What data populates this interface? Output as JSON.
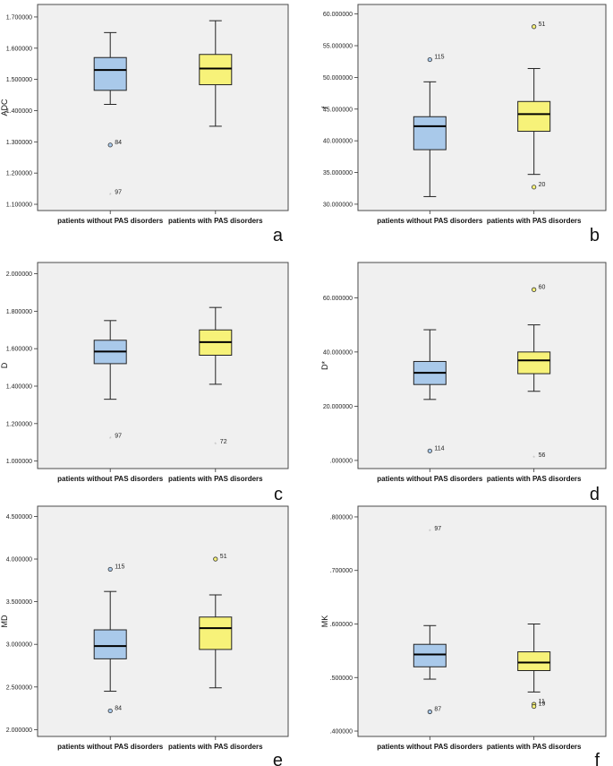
{
  "chart_data": [
    {
      "id": "a",
      "type": "boxplot",
      "letter": "a",
      "ylabel": "ADC",
      "ticks": [
        "1.100000",
        "1.200000",
        "1.300000",
        "1.400000",
        "1.500000",
        "1.600000",
        "1.700000"
      ],
      "tick_values": [
        1.1,
        1.2,
        1.3,
        1.4,
        1.5,
        1.6,
        1.7
      ],
      "ylim": [
        1.08,
        1.74
      ],
      "categories": [
        "patients without PAS disorders",
        "patients with PAS disorders"
      ],
      "boxes": [
        {
          "min": 1.42,
          "q1": 1.465,
          "median": 1.53,
          "q3": 1.57,
          "max": 1.65,
          "color": "#a9c9ea",
          "outliers": [
            {
              "value": 1.29,
              "label": "84",
              "kind": "circle"
            },
            {
              "value": 1.13,
              "label": "97",
              "kind": "star"
            }
          ]
        },
        {
          "min": 1.35,
          "q1": 1.483,
          "median": 1.535,
          "q3": 1.58,
          "max": 1.688,
          "color": "#f7f279",
          "outliers": []
        }
      ]
    },
    {
      "id": "b",
      "type": "boxplot",
      "letter": "b",
      "ylabel": "f",
      "ticks": [
        "30.000000",
        "35.000000",
        "40.000000",
        "45.000000",
        "50.000000",
        "55.000000",
        "60.000000"
      ],
      "tick_values": [
        30,
        35,
        40,
        45,
        50,
        55,
        60
      ],
      "ylim": [
        29,
        61.5
      ],
      "categories": [
        "patients without PAS disorders",
        "patients with PAS disorders"
      ],
      "boxes": [
        {
          "min": 31.2,
          "q1": 38.6,
          "median": 42.3,
          "q3": 43.8,
          "max": 49.3,
          "color": "#a9c9ea",
          "outliers": [
            {
              "value": 52.8,
              "label": "115",
              "kind": "circle"
            }
          ]
        },
        {
          "min": 34.7,
          "q1": 41.5,
          "median": 44.2,
          "q3": 46.2,
          "max": 51.4,
          "color": "#f7f279",
          "outliers": [
            {
              "value": 58.0,
              "label": "51",
              "kind": "circle"
            },
            {
              "value": 32.7,
              "label": "20",
              "kind": "circle"
            }
          ]
        }
      ]
    },
    {
      "id": "c",
      "type": "boxplot",
      "letter": "c",
      "ylabel": "D",
      "ticks": [
        "1.000000",
        "1.200000",
        "1.400000",
        "1.600000",
        "1.800000",
        "2.000000"
      ],
      "tick_values": [
        1.0,
        1.2,
        1.4,
        1.6,
        1.8,
        2.0
      ],
      "ylim": [
        0.96,
        2.06
      ],
      "categories": [
        "patients without PAS disorders",
        "patients with PAS disorders"
      ],
      "boxes": [
        {
          "min": 1.33,
          "q1": 1.52,
          "median": 1.585,
          "q3": 1.645,
          "max": 1.75,
          "color": "#a9c9ea",
          "outliers": [
            {
              "value": 1.12,
              "label": "97",
              "kind": "star"
            }
          ]
        },
        {
          "min": 1.41,
          "q1": 1.565,
          "median": 1.635,
          "q3": 1.7,
          "max": 1.82,
          "color": "#f7f279",
          "outliers": [
            {
              "value": 1.09,
              "label": "72",
              "kind": "star"
            }
          ]
        }
      ]
    },
    {
      "id": "d",
      "type": "boxplot",
      "letter": "d",
      "ylabel": "D*",
      "ticks": [
        ".000000",
        "20.000000",
        "40.000000",
        "60.000000"
      ],
      "tick_values": [
        0,
        20,
        40,
        60
      ],
      "ylim": [
        -3,
        73
      ],
      "categories": [
        "patients without PAS disorders",
        "patients with PAS disorders"
      ],
      "boxes": [
        {
          "min": 22.5,
          "q1": 28.0,
          "median": 32.3,
          "q3": 36.5,
          "max": 48.2,
          "color": "#a9c9ea",
          "outliers": [
            {
              "value": 3.5,
              "label": "114",
              "kind": "circle"
            }
          ]
        },
        {
          "min": 25.5,
          "q1": 32.0,
          "median": 36.9,
          "q3": 40.0,
          "max": 50.0,
          "color": "#f7f279",
          "outliers": [
            {
              "value": 63.0,
              "label": "60",
              "kind": "circle"
            },
            {
              "value": 1.0,
              "label": "56",
              "kind": "star"
            }
          ]
        }
      ]
    },
    {
      "id": "e",
      "type": "boxplot",
      "letter": "e",
      "ylabel": "MD",
      "ticks": [
        "2.000000",
        "2.500000",
        "3.000000",
        "3.500000",
        "4.000000",
        "4.500000"
      ],
      "tick_values": [
        2.0,
        2.5,
        3.0,
        3.5,
        4.0,
        4.5
      ],
      "ylim": [
        1.92,
        4.62
      ],
      "categories": [
        "patients without PAS disorders",
        "patients with PAS disorders"
      ],
      "boxes": [
        {
          "min": 2.45,
          "q1": 2.83,
          "median": 2.98,
          "q3": 3.17,
          "max": 3.62,
          "color": "#a9c9ea",
          "outliers": [
            {
              "value": 3.88,
              "label": "115",
              "kind": "circle"
            },
            {
              "value": 2.22,
              "label": "84",
              "kind": "circle"
            }
          ]
        },
        {
          "min": 2.49,
          "q1": 2.94,
          "median": 3.19,
          "q3": 3.32,
          "max": 3.58,
          "color": "#f7f279",
          "outliers": [
            {
              "value": 4.0,
              "label": "51",
              "kind": "circle"
            }
          ]
        }
      ]
    },
    {
      "id": "f",
      "type": "boxplot",
      "letter": "f",
      "ylabel": "MK",
      "ticks": [
        ".400000",
        ".500000",
        ".600000",
        ".700000",
        ".800000"
      ],
      "tick_values": [
        0.4,
        0.5,
        0.6,
        0.7,
        0.8
      ],
      "ylim": [
        0.39,
        0.82
      ],
      "categories": [
        "patients without PAS disorders",
        "patients with PAS disorders"
      ],
      "boxes": [
        {
          "min": 0.497,
          "q1": 0.52,
          "median": 0.543,
          "q3": 0.562,
          "max": 0.597,
          "color": "#a9c9ea",
          "outliers": [
            {
              "value": 0.773,
              "label": "97",
              "kind": "star"
            },
            {
              "value": 0.436,
              "label": "87",
              "kind": "circle"
            }
          ]
        },
        {
          "min": 0.473,
          "q1": 0.513,
          "median": 0.528,
          "q3": 0.548,
          "max": 0.6,
          "color": "#f7f279",
          "outliers": [
            {
              "value": 0.45,
              "label": "11",
              "kind": "circle"
            },
            {
              "value": 0.446,
              "label": "19",
              "kind": "circle"
            }
          ]
        }
      ]
    }
  ]
}
